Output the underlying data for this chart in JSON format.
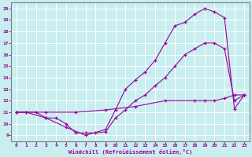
{
  "background_color": "#c8eef0",
  "line_color": "#990099",
  "grid_color": "#ffffff",
  "xlabel": "Windchill (Refroidissement éolien,°C)",
  "xlim": [
    -0.5,
    23.5
  ],
  "ylim": [
    8.5,
    20.5
  ],
  "xticks": [
    0,
    1,
    2,
    3,
    4,
    5,
    6,
    7,
    8,
    9,
    10,
    11,
    12,
    13,
    14,
    15,
    16,
    17,
    18,
    19,
    20,
    21,
    22,
    23
  ],
  "yticks": [
    9,
    10,
    11,
    12,
    13,
    14,
    15,
    16,
    17,
    18,
    19,
    20
  ],
  "line1_x": [
    0,
    1,
    2,
    3,
    4,
    5,
    6,
    7,
    8,
    9,
    10,
    11,
    12,
    13,
    14,
    15,
    16,
    17,
    18,
    19,
    20,
    21,
    22,
    23
  ],
  "line1_y": [
    11,
    11,
    11,
    10.5,
    10.5,
    10,
    9.2,
    9.2,
    9.2,
    9.3,
    10.5,
    11.2,
    12,
    12.5,
    13.3,
    14,
    15,
    16,
    16.5,
    17,
    17,
    16.5,
    12,
    12.5
  ],
  "line2_x": [
    0,
    1,
    3,
    5,
    7,
    9,
    10,
    11,
    12,
    13,
    14,
    15,
    16,
    17,
    18,
    19,
    20,
    21,
    22,
    23
  ],
  "line2_y": [
    11,
    11,
    10.5,
    9.7,
    9.0,
    9.5,
    11.2,
    13,
    13.8,
    14.5,
    15.5,
    17,
    18.5,
    18.8,
    19.5,
    20,
    19.7,
    19.2,
    11.3,
    12.5
  ],
  "line3_x": [
    0,
    3,
    6,
    9,
    12,
    15,
    18,
    19,
    20,
    21,
    22,
    23
  ],
  "line3_y": [
    11,
    11,
    11,
    11.2,
    11.5,
    12,
    12,
    12,
    12,
    12.2,
    12.5,
    12.5
  ]
}
